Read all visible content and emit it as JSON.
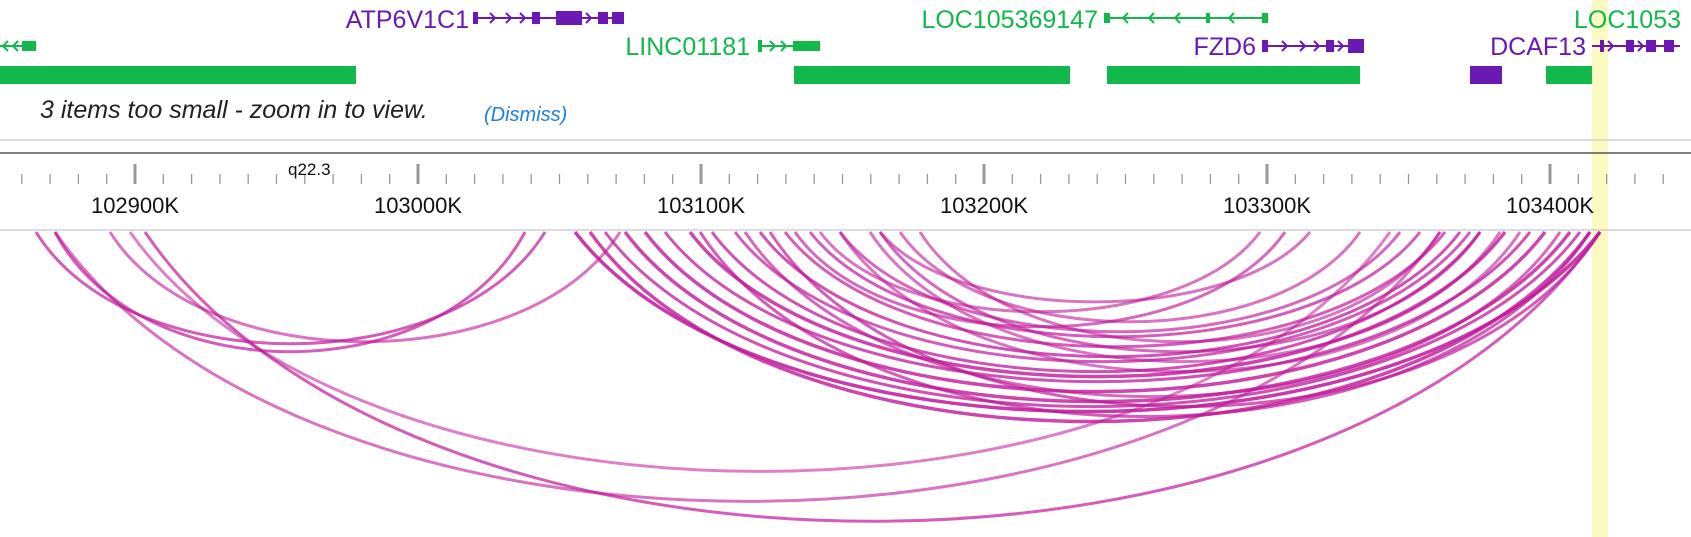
{
  "notice": {
    "text": "3 items too small - zoom in to view.",
    "dismiss_label": "(Dismiss)"
  },
  "genes": [
    {
      "label": "ATP6V1C1",
      "strand": "+",
      "color": "#6a1ab3"
    },
    {
      "label": "LINC01181",
      "strand": "+",
      "color": "#11b84a"
    },
    {
      "label": "LOC105369147",
      "strand": "-",
      "color": "#11b84a"
    },
    {
      "label": "FZD6",
      "strand": "+",
      "color": "#6a1ab3"
    },
    {
      "label": "DCAF13",
      "strand": "+",
      "color": "#6a1ab3"
    },
    {
      "label": "LOC1053",
      "strand": "+",
      "color": "#11b84a"
    }
  ],
  "ruler": {
    "band_label": "q22.3",
    "unit": "K",
    "ticks": [
      "102900K",
      "103000K",
      "103100K",
      "103200K",
      "103300K",
      "103400K"
    ]
  },
  "arcs": {
    "color": "#c0189a"
  },
  "colors": {
    "gene_green": "#11b84a",
    "gene_purple": "#6a1ab3",
    "highlight": "#fbfac0",
    "arc": "#c0189a"
  }
}
